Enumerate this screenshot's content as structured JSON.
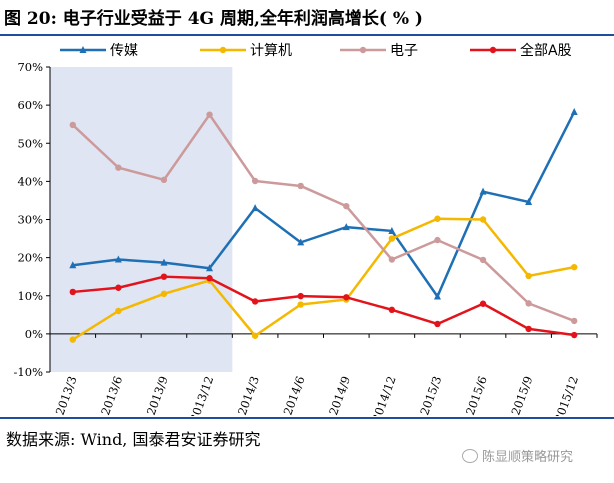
{
  "title": "图 20: 电子行业受益于 4G 周期,全年利润高增长( % )",
  "source": "数据来源: Wind, 国泰君安证券研究",
  "watermark": "陈显顺策略研究",
  "chart_data": {
    "type": "line",
    "categories": [
      "2013/3",
      "2013/6",
      "2013/9",
      "2013/12",
      "2014/3",
      "2014/6",
      "2014/9",
      "2014/12",
      "2015/3",
      "2015/6",
      "2015/9",
      "2015/12"
    ],
    "y_ticks": [
      "-10%",
      "0%",
      "10%",
      "20%",
      "30%",
      "40%",
      "50%",
      "60%",
      "70%"
    ],
    "ylim": [
      -10,
      70
    ],
    "shaded_region": {
      "from": "2013/3",
      "to": "2013/12",
      "color": "#dfe5f3"
    },
    "legend_position": "top",
    "series": [
      {
        "name": "传媒",
        "color": "#1f6fb5",
        "marker": "triangle",
        "values": [
          18,
          19.5,
          18.7,
          17.2,
          33,
          24,
          28,
          27,
          9.8,
          37.3,
          34.6,
          58.2
        ]
      },
      {
        "name": "计算机",
        "color": "#f5b800",
        "marker": "circle",
        "values": [
          -1.5,
          6,
          10.5,
          14,
          -0.5,
          7.7,
          9,
          25,
          30.2,
          30,
          15.2,
          17.5
        ]
      },
      {
        "name": "电子",
        "color": "#cd9a9b",
        "marker": "circle",
        "values": [
          54.8,
          43.6,
          40.4,
          57.5,
          40.1,
          38.8,
          33.5,
          19.5,
          24.6,
          19.4,
          8,
          3.4
        ]
      },
      {
        "name": "全部A股",
        "color": "#e3131b",
        "marker": "circle",
        "values": [
          11,
          12.1,
          15,
          14.6,
          8.5,
          9.9,
          9.6,
          6.3,
          2.6,
          7.9,
          1.3,
          -0.3
        ]
      }
    ]
  }
}
